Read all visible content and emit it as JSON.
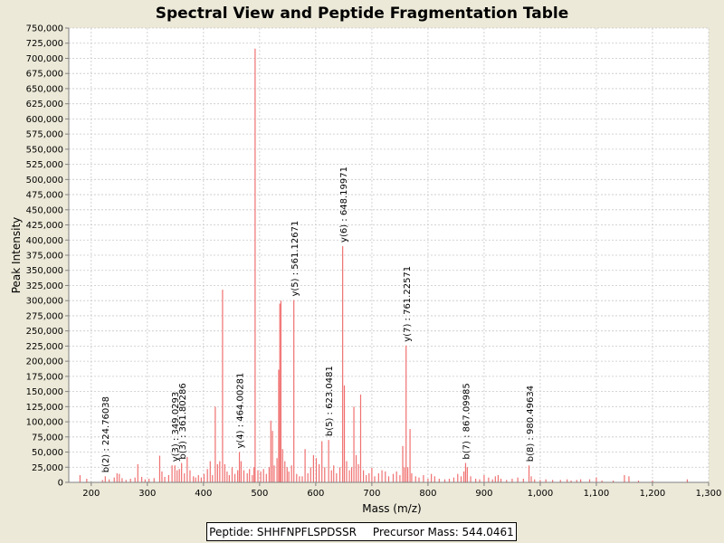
{
  "chart_data": {
    "type": "bar",
    "title": "Spectral View and Peptide Fragmentation Table",
    "xlabel": "Mass (m/z)",
    "ylabel": "Peak Intensity",
    "xlim": [
      160,
      1300
    ],
    "ylim": [
      0,
      750000
    ],
    "x_ticks": [
      200,
      300,
      400,
      500,
      600,
      700,
      800,
      900,
      1000,
      1100,
      1200,
      1300
    ],
    "x_tick_labels": [
      "200",
      "300",
      "400",
      "500",
      "600",
      "700",
      "800",
      "900",
      "1,000",
      "1,100",
      "1,200",
      "1,300"
    ],
    "y_ticks": [
      0,
      25000,
      50000,
      75000,
      100000,
      125000,
      150000,
      175000,
      200000,
      225000,
      250000,
      275000,
      300000,
      325000,
      350000,
      375000,
      400000,
      425000,
      450000,
      475000,
      500000,
      525000,
      550000,
      575000,
      600000,
      625000,
      650000,
      675000,
      700000,
      725000,
      750000
    ],
    "y_tick_labels": [
      "0",
      "25,000",
      "50,000",
      "75,000",
      "100,000",
      "125,000",
      "150,000",
      "175,000",
      "200,000",
      "225,000",
      "250,000",
      "275,000",
      "300,000",
      "325,000",
      "350,000",
      "375,000",
      "400,000",
      "425,000",
      "450,000",
      "475,000",
      "500,000",
      "525,000",
      "550,000",
      "575,000",
      "600,000",
      "625,000",
      "650,000",
      "675,000",
      "700,000",
      "725,000",
      "750,000"
    ],
    "grid": true,
    "peak_color": "#F07070",
    "peaks": [
      [
        180,
        12000
      ],
      [
        192,
        6000
      ],
      [
        220,
        4000
      ],
      [
        225,
        10000
      ],
      [
        232,
        5000
      ],
      [
        241,
        8000
      ],
      [
        246,
        15000
      ],
      [
        250,
        14000
      ],
      [
        255,
        7000
      ],
      [
        262,
        4000
      ],
      [
        270,
        6000
      ],
      [
        278,
        8000
      ],
      [
        283,
        30000
      ],
      [
        290,
        9000
      ],
      [
        296,
        5000
      ],
      [
        303,
        6000
      ],
      [
        312,
        7000
      ],
      [
        322,
        44000
      ],
      [
        326,
        18000
      ],
      [
        331,
        9000
      ],
      [
        338,
        12000
      ],
      [
        344,
        28000
      ],
      [
        349,
        28000
      ],
      [
        353,
        20000
      ],
      [
        357,
        22000
      ],
      [
        361,
        32000
      ],
      [
        366,
        15000
      ],
      [
        371,
        42000
      ],
      [
        376,
        20000
      ],
      [
        382,
        10000
      ],
      [
        386,
        8000
      ],
      [
        391,
        12000
      ],
      [
        396,
        8000
      ],
      [
        401,
        14000
      ],
      [
        407,
        22000
      ],
      [
        412,
        35000
      ],
      [
        416,
        12000
      ],
      [
        421,
        125000
      ],
      [
        425,
        30000
      ],
      [
        429,
        35000
      ],
      [
        434,
        318000
      ],
      [
        438,
        30000
      ],
      [
        442,
        18000
      ],
      [
        446,
        12000
      ],
      [
        451,
        25000
      ],
      [
        456,
        14000
      ],
      [
        461,
        20000
      ],
      [
        464,
        50000
      ],
      [
        467,
        35000
      ],
      [
        472,
        20000
      ],
      [
        478,
        15000
      ],
      [
        482,
        22000
      ],
      [
        487,
        12000
      ],
      [
        490,
        25000
      ],
      [
        492,
        716000
      ],
      [
        497,
        20000
      ],
      [
        502,
        18000
      ],
      [
        507,
        22000
      ],
      [
        512,
        14000
      ],
      [
        517,
        25000
      ],
      [
        520,
        102000
      ],
      [
        523,
        85000
      ],
      [
        526,
        28000
      ],
      [
        531,
        40000
      ],
      [
        534,
        186000
      ],
      [
        536,
        295000
      ],
      [
        538,
        300000
      ],
      [
        541,
        55000
      ],
      [
        545,
        35000
      ],
      [
        549,
        25000
      ],
      [
        552,
        18000
      ],
      [
        557,
        28000
      ],
      [
        561,
        301000
      ],
      [
        566,
        14000
      ],
      [
        571,
        10000
      ],
      [
        576,
        10000
      ],
      [
        581,
        55000
      ],
      [
        586,
        15000
      ],
      [
        591,
        25000
      ],
      [
        596,
        45000
      ],
      [
        601,
        40000
      ],
      [
        606,
        30000
      ],
      [
        611,
        68000
      ],
      [
        616,
        25000
      ],
      [
        623,
        70000
      ],
      [
        628,
        20000
      ],
      [
        632,
        28000
      ],
      [
        637,
        15000
      ],
      [
        643,
        25000
      ],
      [
        648,
        390000
      ],
      [
        651,
        160000
      ],
      [
        655,
        35000
      ],
      [
        660,
        20000
      ],
      [
        664,
        25000
      ],
      [
        668,
        125000
      ],
      [
        672,
        45000
      ],
      [
        676,
        30000
      ],
      [
        680,
        145000
      ],
      [
        685,
        20000
      ],
      [
        690,
        12000
      ],
      [
        695,
        15000
      ],
      [
        700,
        24000
      ],
      [
        705,
        10000
      ],
      [
        712,
        15000
      ],
      [
        718,
        20000
      ],
      [
        724,
        18000
      ],
      [
        730,
        10000
      ],
      [
        738,
        14000
      ],
      [
        744,
        18000
      ],
      [
        750,
        12000
      ],
      [
        755,
        60000
      ],
      [
        758,
        25000
      ],
      [
        761,
        226000
      ],
      [
        764,
        25000
      ],
      [
        768,
        88000
      ],
      [
        771,
        15000
      ],
      [
        778,
        10000
      ],
      [
        784,
        8000
      ],
      [
        792,
        12000
      ],
      [
        800,
        6000
      ],
      [
        806,
        14000
      ],
      [
        812,
        10000
      ],
      [
        820,
        6000
      ],
      [
        830,
        5000
      ],
      [
        838,
        6000
      ],
      [
        846,
        8000
      ],
      [
        853,
        14000
      ],
      [
        859,
        10000
      ],
      [
        864,
        18000
      ],
      [
        867,
        32000
      ],
      [
        870,
        25000
      ],
      [
        876,
        10000
      ],
      [
        885,
        6000
      ],
      [
        892,
        5000
      ],
      [
        900,
        12000
      ],
      [
        908,
        8000
      ],
      [
        915,
        5000
      ],
      [
        920,
        10000
      ],
      [
        925,
        12000
      ],
      [
        930,
        6000
      ],
      [
        940,
        4000
      ],
      [
        950,
        6000
      ],
      [
        960,
        8000
      ],
      [
        970,
        6000
      ],
      [
        980,
        28000
      ],
      [
        984,
        10000
      ],
      [
        990,
        5000
      ],
      [
        1000,
        4000
      ],
      [
        1010,
        5000
      ],
      [
        1022,
        4000
      ],
      [
        1036,
        4000
      ],
      [
        1048,
        5000
      ],
      [
        1055,
        3000
      ],
      [
        1065,
        4000
      ],
      [
        1072,
        5000
      ],
      [
        1088,
        5000
      ],
      [
        1100,
        8000
      ],
      [
        1110,
        3000
      ],
      [
        1130,
        3000
      ],
      [
        1150,
        12000
      ],
      [
        1158,
        10000
      ],
      [
        1175,
        3000
      ],
      [
        1200,
        3000
      ],
      [
        1262,
        5000
      ]
    ],
    "annotations": [
      {
        "x": 224.76038,
        "y": 10000,
        "label": "b(2) : 224.76038"
      },
      {
        "x": 349.0293,
        "y": 28000,
        "label": "y(3) : 349.0293"
      },
      {
        "x": 361.80286,
        "y": 32000,
        "label": "b(3) : 361.80286"
      },
      {
        "x": 464.00281,
        "y": 50000,
        "label": "y(4) : 464.00281"
      },
      {
        "x": 561.12671,
        "y": 301000,
        "label": "y(5) : 561.12671"
      },
      {
        "x": 623.0481,
        "y": 70000,
        "label": "b(5) : 623.0481"
      },
      {
        "x": 648.19971,
        "y": 390000,
        "label": "y(6) : 648.19971"
      },
      {
        "x": 761.22571,
        "y": 226000,
        "label": "y(7) : 761.22571"
      },
      {
        "x": 867.09985,
        "y": 32000,
        "label": "b(7) : 867.09985"
      },
      {
        "x": 980.49634,
        "y": 28000,
        "label": "b(8) : 980.49634"
      }
    ]
  },
  "footer": {
    "peptide_text": "Peptide: SHHFNPFLSPDSSR",
    "precursor_text": "Precursor Mass: 544.0461"
  }
}
